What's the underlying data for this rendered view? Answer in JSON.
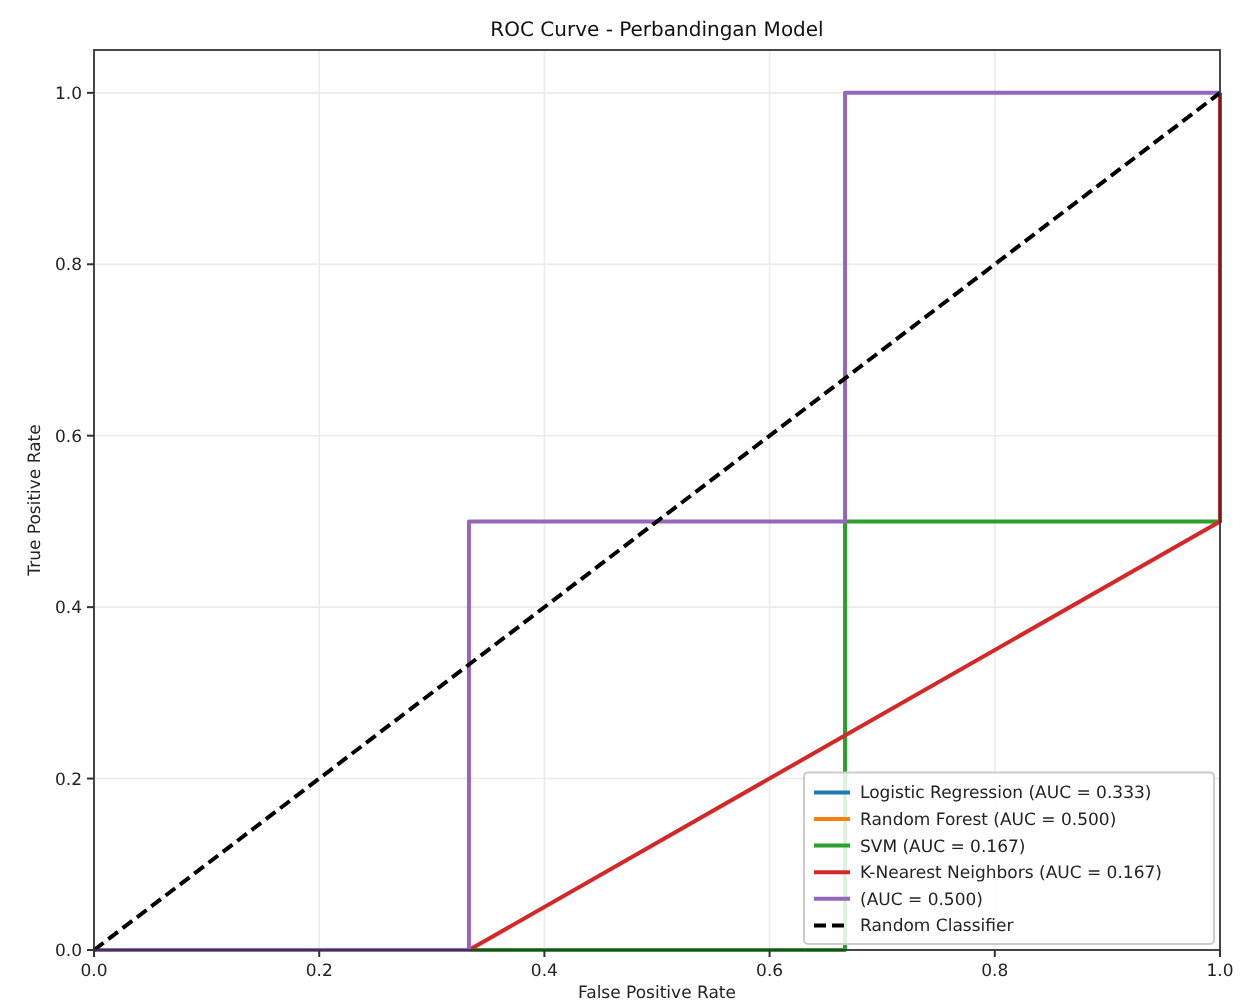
{
  "chart_data": {
    "type": "line",
    "title": "ROC Curve - Perbandingan Model",
    "xlabel": "False Positive Rate",
    "ylabel": "True Positive Rate",
    "xlim": [
      0,
      1
    ],
    "ylim": [
      0,
      1.05
    ],
    "xticks": [
      {
        "value": 0,
        "label": "0.0"
      },
      0.2,
      0.4,
      0.6,
      0.8,
      {
        "value": 1,
        "label": "1.0"
      }
    ],
    "yticks": [
      {
        "value": 0,
        "label": "0.0"
      },
      0.2,
      0.4,
      0.6,
      0.8,
      {
        "value": 1,
        "label": "1.0"
      }
    ],
    "grid": true,
    "legend": "bottom right",
    "marker": "none",
    "line_style": "solid",
    "series": [
      {
        "name": "Logistic Regression (AUC = 0.333)",
        "color": "#1f77b4"
      },
      {
        "name": "Random Forest (AUC = 0.500)",
        "color": "#ff7f0e"
      },
      {
        "name": "SVM (AUC = 0.167)",
        "color": "#2ca02c",
        "x": [
          0,
          0.667,
          0.667,
          1,
          1
        ],
        "values": [
          0,
          0,
          0.5,
          0.5,
          1
        ]
      },
      {
        "name": "K-Nearest Neighbors (AUC = 0.167)",
        "color": "#d62728",
        "x": [
          0,
          0.333,
          1,
          1
        ],
        "values": [
          0,
          0,
          0.5,
          1
        ]
      },
      {
        "name": "(AUC = 0.500)",
        "color": "#9467bd",
        "x": [
          0,
          0.333,
          0.333,
          0.667,
          0.667,
          1
        ],
        "values": [
          0,
          0,
          0.5,
          0.5,
          1,
          1
        ]
      },
      {
        "name": "Random Classifier",
        "color": "#000000",
        "line_style": "dashed",
        "x": [
          0,
          1
        ],
        "values": [
          0,
          1
        ]
      }
    ]
  }
}
